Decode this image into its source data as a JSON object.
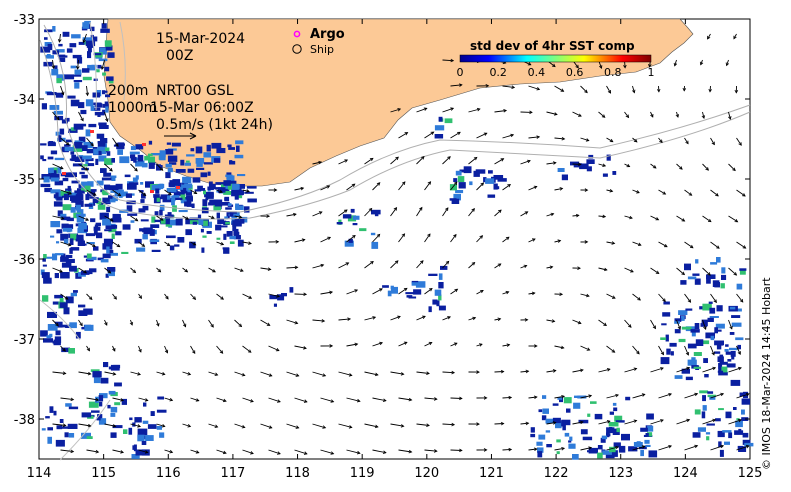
{
  "map": {
    "date_label": "15-Mar-2024",
    "time_label": "00Z",
    "legend_argo": "Argo",
    "legend_ship": "Ship",
    "colorbar_title": "std dev of 4hr SST comp",
    "colorbar_ticks": [
      "0",
      "0.2",
      "0.4",
      "0.6",
      "0.8",
      "1"
    ],
    "contour_label_1": "200m",
    "contour_label_2": "1000m",
    "source_label": "NRT00 GSL",
    "source_time": "15-Mar 06:00Z",
    "vector_scale_label": "0.5m/s (1kt 24h)",
    "credit": "© IMOS 18-Mar-2024 14:45 Hobart",
    "x_ticks": [
      "114",
      "115",
      "116",
      "117",
      "118",
      "119",
      "120",
      "121",
      "122",
      "123",
      "124",
      "125"
    ],
    "y_ticks": [
      "-33",
      "-34",
      "-35",
      "-36",
      "-37",
      "-38"
    ],
    "colors": {
      "land": "#fcc996",
      "coast_line": "#b0b0b0",
      "argo": "#ff00ff",
      "cloud_low": "#0a1fa0",
      "cloud_mid": "#2f7bd9",
      "cloud_high": "#30c070"
    }
  }
}
